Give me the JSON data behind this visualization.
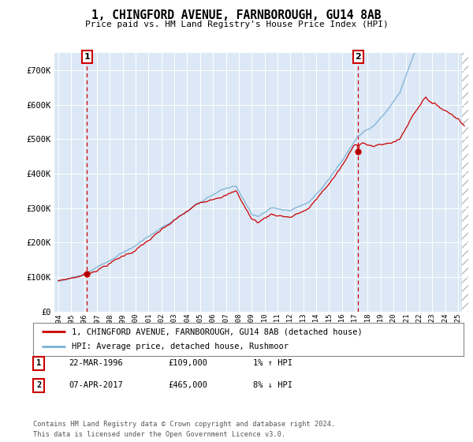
{
  "title": "1, CHINGFORD AVENUE, FARNBOROUGH, GU14 8AB",
  "subtitle": "Price paid vs. HM Land Registry's House Price Index (HPI)",
  "legend_line1": "1, CHINGFORD AVENUE, FARNBOROUGH, GU14 8AB (detached house)",
  "legend_line2": "HPI: Average price, detached house, Rushmoor",
  "annotation1_label": "1",
  "annotation1_date": "22-MAR-1996",
  "annotation1_price": "£109,000",
  "annotation1_hpi": "1% ↑ HPI",
  "annotation2_label": "2",
  "annotation2_date": "07-APR-2017",
  "annotation2_price": "£465,000",
  "annotation2_hpi": "8% ↓ HPI",
  "footer": "Contains HM Land Registry data © Crown copyright and database right 2024.\nThis data is licensed under the Open Government Licence v3.0.",
  "ylim": [
    0,
    750000
  ],
  "yticks": [
    0,
    100000,
    200000,
    300000,
    400000,
    500000,
    600000,
    700000
  ],
  "ytick_labels": [
    "£0",
    "£100K",
    "£200K",
    "£300K",
    "£400K",
    "£500K",
    "£600K",
    "£700K"
  ],
  "sale1_year": 1996.22,
  "sale1_price": 109000,
  "sale2_year": 2017.27,
  "sale2_price": 465000,
  "line_color_red": "#cc0000",
  "line_color_blue": "#7ab0d4",
  "background_color": "#ffffff",
  "plot_bg_color": "#dce8f5",
  "grid_color": "#ffffff",
  "xlim_start": 1993.7,
  "xlim_end": 2025.8,
  "hatch_start": 2025.3,
  "x_years_start": 1994,
  "x_years_end": 2025
}
